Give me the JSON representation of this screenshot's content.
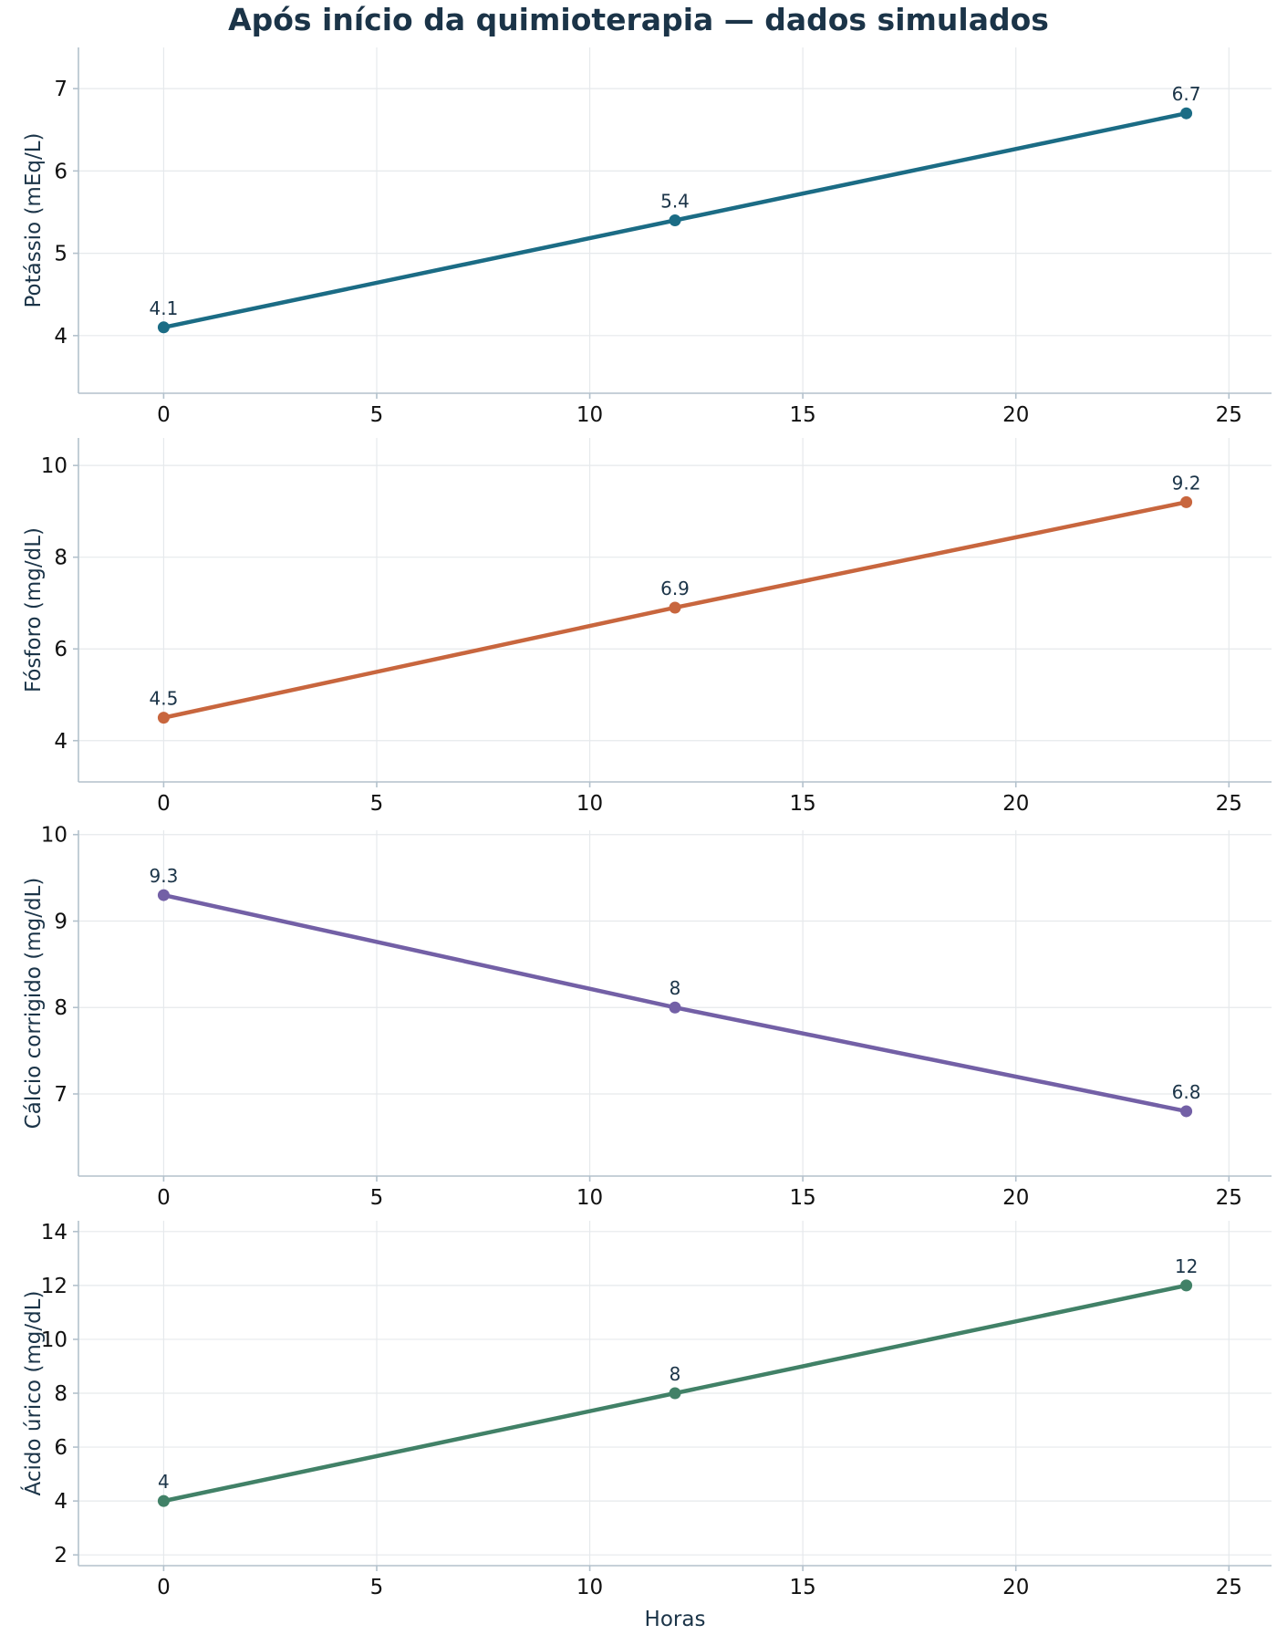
{
  "title": "Após início da quimioterapia — dados simulados",
  "chart_data": [
    {
      "type": "line",
      "x": [
        0,
        12,
        24
      ],
      "series": [
        {
          "values": [
            4.1,
            5.4,
            6.7
          ],
          "color": "#1b6c85"
        }
      ],
      "data_labels": [
        "4.1",
        "5.4",
        "6.7"
      ],
      "ylabel": "Potássio (mEq/L)",
      "xlabel": "",
      "xlim": [
        -2,
        26
      ],
      "ylim": [
        3.3,
        7.5
      ],
      "xticks": [
        0,
        5,
        10,
        15,
        20,
        25
      ],
      "yticks": [
        4,
        5,
        6,
        7
      ],
      "grid": true
    },
    {
      "type": "line",
      "x": [
        0,
        12,
        24
      ],
      "series": [
        {
          "values": [
            4.5,
            6.9,
            9.2
          ],
          "color": "#c8663e"
        }
      ],
      "data_labels": [
        "4.5",
        "6.9",
        "9.2"
      ],
      "ylabel": "Fósforo (mg/dL)",
      "xlabel": "",
      "xlim": [
        -2,
        26
      ],
      "ylim": [
        3.1,
        10.6
      ],
      "xticks": [
        0,
        5,
        10,
        15,
        20,
        25
      ],
      "yticks": [
        4,
        6,
        8,
        10
      ],
      "grid": true
    },
    {
      "type": "line",
      "x": [
        0,
        12,
        24
      ],
      "series": [
        {
          "values": [
            9.3,
            8,
            6.8
          ],
          "color": "#7360a6"
        }
      ],
      "data_labels": [
        "9.3",
        "8",
        "6.8"
      ],
      "ylabel": "Cálcio corrigido (mg/dL)",
      "xlabel": "",
      "xlim": [
        -2,
        26
      ],
      "ylim": [
        6.05,
        10.05
      ],
      "xticks": [
        0,
        5,
        10,
        15,
        20,
        25
      ],
      "yticks": [
        7,
        8,
        9,
        10
      ],
      "grid": true
    },
    {
      "type": "line",
      "x": [
        0,
        12,
        24
      ],
      "series": [
        {
          "values": [
            4,
            8,
            12
          ],
          "color": "#418167"
        }
      ],
      "data_labels": [
        "4",
        "8",
        "12"
      ],
      "ylabel": "Ácido úrico (mg/dL)",
      "xlabel": "Horas",
      "xlim": [
        -2,
        26
      ],
      "ylim": [
        1.6,
        14.4
      ],
      "xticks": [
        0,
        5,
        10,
        15,
        20,
        25
      ],
      "yticks": [
        2,
        4,
        6,
        8,
        10,
        12,
        14
      ],
      "grid": true
    }
  ]
}
